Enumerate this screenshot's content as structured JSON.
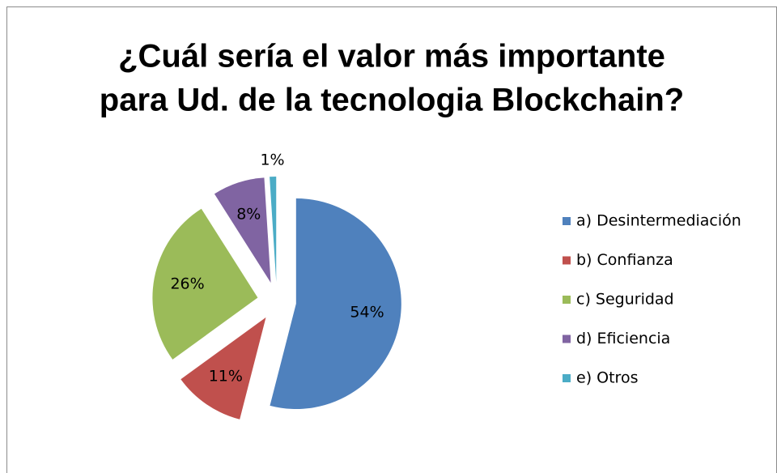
{
  "chart_data": {
    "type": "pie",
    "title": [
      "¿Cuál sería el valor más importante",
      "para Ud. de la tecnologia Blockchain?"
    ],
    "categories": [
      "a) Desintermediación",
      "b) Confianza",
      "c) Seguridad",
      "d) Eficiencia",
      "e) Otros"
    ],
    "values": [
      54,
      11,
      26,
      8,
      1
    ],
    "value_labels": [
      "54%",
      "11%",
      "26%",
      "8%",
      "1%"
    ],
    "colors": [
      "#4f81bd",
      "#c0504d",
      "#9bbb59",
      "#8064a2",
      "#4bacc6"
    ],
    "exploded": true,
    "legend": "right"
  }
}
